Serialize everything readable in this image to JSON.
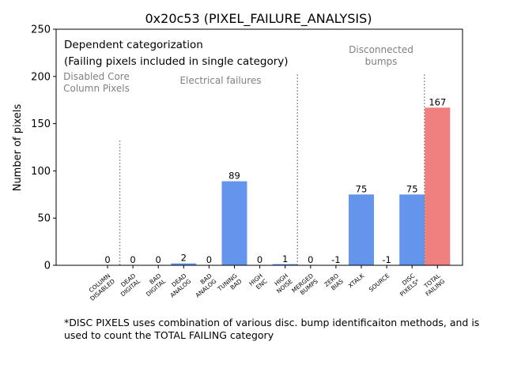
{
  "chart_data": {
    "type": "bar",
    "title": "0x20c53 (PIXEL_FAILURE_ANALYSIS)",
    "xlabel": "",
    "ylabel": "Number of pixels",
    "ylim": [
      0,
      250
    ],
    "yticks": [
      "0",
      "50",
      "100",
      "150",
      "200",
      "250"
    ],
    "grid": false,
    "categories": [
      [
        "COLUMN",
        "DISABLED"
      ],
      [
        "DEAD",
        "DIGITAL"
      ],
      [
        "BAD",
        "DIGITAL"
      ],
      [
        "DEAD",
        "ANALOG"
      ],
      [
        "BAD",
        "ANALOG"
      ],
      [
        "TUNING",
        "BAD"
      ],
      [
        "HIGH",
        "ENC"
      ],
      [
        "HIGH",
        "NOISE"
      ],
      [
        "MERGED",
        "BUMPS"
      ],
      [
        "ZERO",
        "BIAS"
      ],
      [
        "XTALK"
      ],
      [
        "SOURCE"
      ],
      [
        "DISC",
        "PIXELS*"
      ],
      [
        "TOTAL",
        "FAILING"
      ]
    ],
    "values": [
      0,
      0,
      0,
      2,
      0,
      89,
      0,
      1,
      0,
      -1,
      75,
      -1,
      75,
      167
    ],
    "value_labels": [
      "0",
      "0",
      "0",
      "2",
      "0",
      "89",
      "0",
      "1",
      "0",
      "-1",
      "75",
      "-1",
      "75",
      "167"
    ],
    "colors": {
      "bar": "#6495ed",
      "total": "#f08080",
      "separator": "#7f7f7f",
      "group_text": "#808080"
    },
    "highlight_category": "TOTAL FAILING",
    "group_labels": [
      {
        "lines": [
          "Disabled Core",
          "Column Pixels"
        ]
      },
      {
        "lines": [
          "Electrical failures"
        ]
      },
      {
        "lines": [
          "Disconnected",
          "bumps"
        ]
      }
    ],
    "separator_after_index": [
      0,
      7,
      12
    ],
    "annotation": {
      "line1": "Dependent categorization",
      "line2": "(Failing pixels included in single category)"
    }
  },
  "footnote": "*DISC PIXELS uses combination of various disc. bump identificaiton methods, and is\nused to count the TOTAL FAILING category"
}
